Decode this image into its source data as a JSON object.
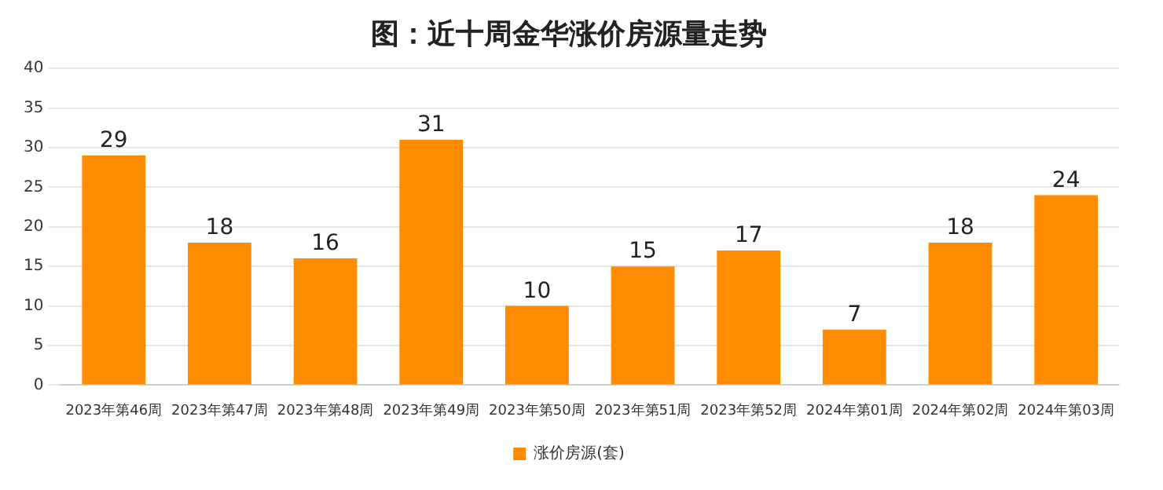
{
  "chart_data": {
    "type": "bar",
    "title": "图：近十周金华涨价房源量走势",
    "categories": [
      "2023年第46周",
      "2023年第47周",
      "2023年第48周",
      "2023年第49周",
      "2023年第50周",
      "2023年第51周",
      "2023年第52周",
      "2024年第01周",
      "2024年第02周",
      "2024年第03周"
    ],
    "series": [
      {
        "name": "涨价房源(套)",
        "color": "#ff8c00",
        "values": [
          29,
          18,
          16,
          31,
          10,
          15,
          17,
          7,
          18,
          24
        ]
      }
    ],
    "ylim": [
      0,
      40
    ],
    "yticks": [
      0,
      5,
      10,
      15,
      20,
      25,
      30,
      35,
      40
    ],
    "grid": "y",
    "legend": "bottom",
    "data_labels": true
  }
}
